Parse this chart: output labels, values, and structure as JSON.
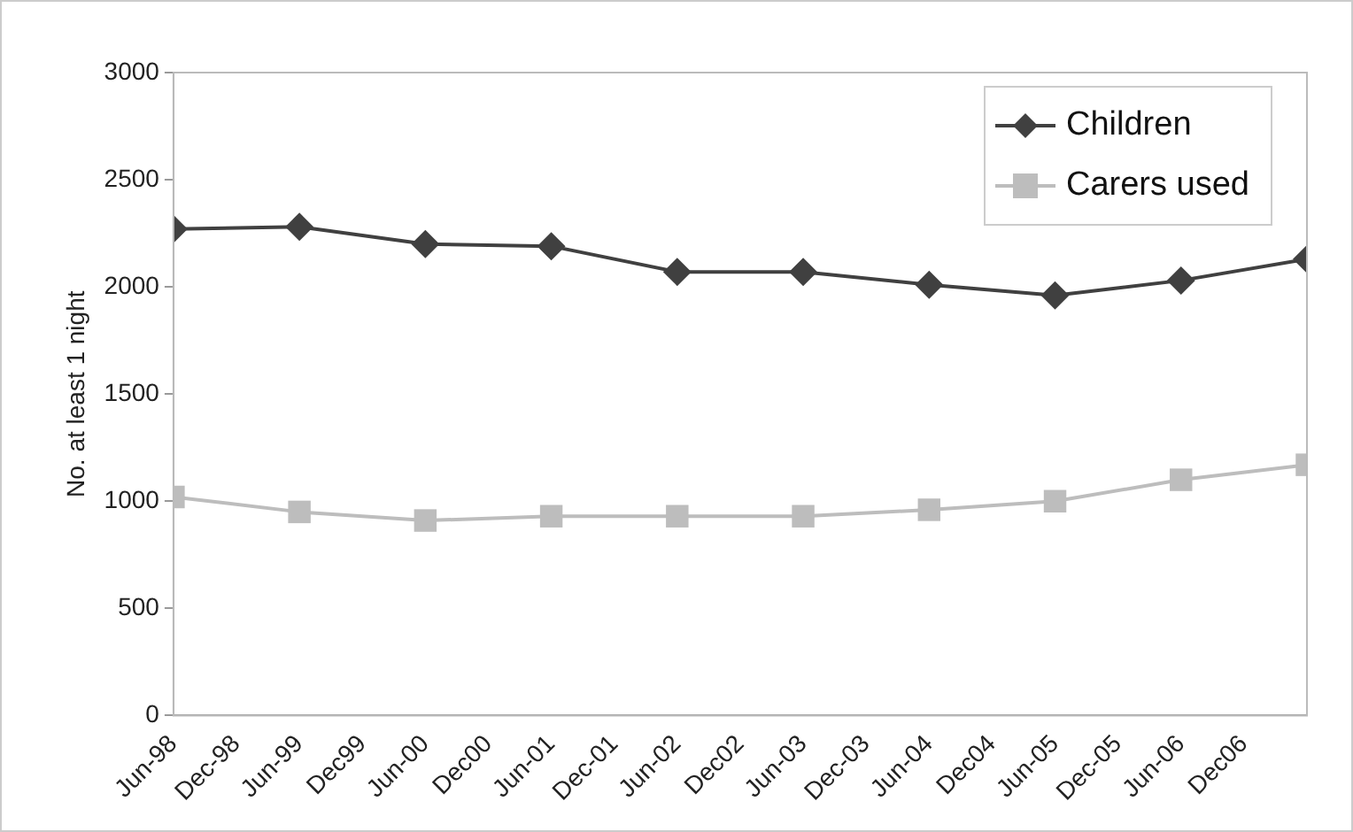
{
  "chart_data": {
    "type": "line",
    "ylabel": "No. at least 1 night",
    "x": [
      "1998-06",
      "1999-06",
      "2000-06",
      "2001-06",
      "2002-06",
      "2003-06",
      "2004-06",
      "2005-06",
      "2006-06",
      "2007-06"
    ],
    "series": [
      {
        "name": "Children",
        "color": "#404040",
        "marker": "diamond",
        "values": [
          2270,
          2280,
          2200,
          2190,
          2070,
          2070,
          2010,
          1960,
          2030,
          2130
        ]
      },
      {
        "name": "Carers used",
        "color": "#bdbdbd",
        "marker": "square",
        "values": [
          1020,
          950,
          910,
          930,
          930,
          930,
          960,
          1000,
          1100,
          1170
        ]
      }
    ],
    "xlim": [
      "1998-06",
      "2007-06"
    ],
    "xticks": [
      {
        "value": "1998-06",
        "label": "Jun-98"
      },
      {
        "value": "1998-12",
        "label": "Dec-98"
      },
      {
        "value": "1999-06",
        "label": "Jun-99"
      },
      {
        "value": "1999-12",
        "label": "Dec99"
      },
      {
        "value": "2000-06",
        "label": "Jun-00"
      },
      {
        "value": "2000-12",
        "label": "Dec00"
      },
      {
        "value": "2001-06",
        "label": "Jun-01"
      },
      {
        "value": "2001-12",
        "label": "Dec-01"
      },
      {
        "value": "2002-06",
        "label": "Jun-02"
      },
      {
        "value": "2002-12",
        "label": "Dec02"
      },
      {
        "value": "2003-06",
        "label": "Jun-03"
      },
      {
        "value": "2003-12",
        "label": "Dec-03"
      },
      {
        "value": "2004-06",
        "label": "Jun-04"
      },
      {
        "value": "2004-12",
        "label": "Dec04"
      },
      {
        "value": "2005-06",
        "label": "Jun-05"
      },
      {
        "value": "2005-12",
        "label": "Dec-05"
      },
      {
        "value": "2006-06",
        "label": "Jun-06"
      },
      {
        "value": "2006-12",
        "label": "Dec06"
      }
    ],
    "ylim": [
      0,
      3000
    ],
    "yticks": [
      0,
      500,
      1000,
      1500,
      2000,
      2500,
      3000
    ],
    "grid": false,
    "legend": "top right",
    "line_style": "solid"
  }
}
